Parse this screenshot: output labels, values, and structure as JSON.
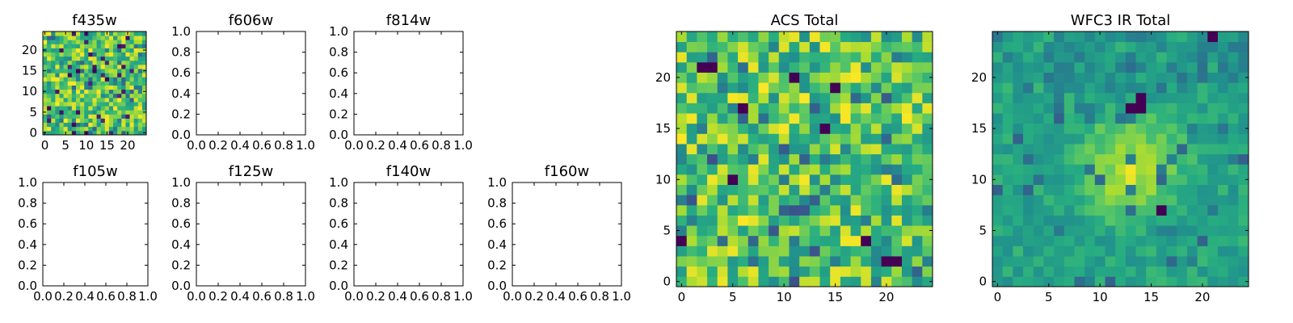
{
  "chart_data": [
    {
      "type": "heatmap",
      "title": "f435w",
      "xticks": [
        "0",
        "5",
        "10",
        "15",
        "20"
      ],
      "yticks": [
        "0",
        "5",
        "10",
        "15",
        "20"
      ],
      "xlim": [
        -0.5,
        24.5
      ],
      "ylim": [
        -0.5,
        24.5
      ],
      "grid_size": [
        25,
        25
      ],
      "colormap": "viridis",
      "seed": 11,
      "style": "noise"
    },
    {
      "type": "empty",
      "title": "f606w",
      "xticks": [
        "0.0",
        "0.2",
        "0.4",
        "0.6",
        "0.8",
        "1.0"
      ],
      "yticks": [
        "0.0",
        "0.2",
        "0.4",
        "0.6",
        "0.8",
        "1.0"
      ],
      "xlim": [
        0,
        1
      ],
      "ylim": [
        0,
        1
      ]
    },
    {
      "type": "empty",
      "title": "f814w",
      "xticks": [
        "0.0",
        "0.2",
        "0.4",
        "0.6",
        "0.8",
        "1.0"
      ],
      "yticks": [
        "0.0",
        "0.2",
        "0.4",
        "0.6",
        "0.8",
        "1.0"
      ],
      "xlim": [
        0,
        1
      ],
      "ylim": [
        0,
        1
      ]
    },
    {
      "type": "empty",
      "title": "f105w",
      "xticks": [
        "0.0",
        "0.2",
        "0.4",
        "0.6",
        "0.8",
        "1.0"
      ],
      "yticks": [
        "0.0",
        "0.2",
        "0.4",
        "0.6",
        "0.8",
        "1.0"
      ],
      "xlim": [
        0,
        1
      ],
      "ylim": [
        0,
        1
      ]
    },
    {
      "type": "empty",
      "title": "f125w",
      "xticks": [
        "0.0",
        "0.2",
        "0.4",
        "0.6",
        "0.8",
        "1.0"
      ],
      "yticks": [
        "0.0",
        "0.2",
        "0.4",
        "0.6",
        "0.8",
        "1.0"
      ],
      "xlim": [
        0,
        1
      ],
      "ylim": [
        0,
        1
      ]
    },
    {
      "type": "empty",
      "title": "f140w",
      "xticks": [
        "0.0",
        "0.2",
        "0.4",
        "0.6",
        "0.8",
        "1.0"
      ],
      "yticks": [
        "0.0",
        "0.2",
        "0.4",
        "0.6",
        "0.8",
        "1.0"
      ],
      "xlim": [
        0,
        1
      ],
      "ylim": [
        0,
        1
      ]
    },
    {
      "type": "empty",
      "title": "f160w",
      "xticks": [
        "0.0",
        "0.2",
        "0.4",
        "0.6",
        "0.8",
        "1.0"
      ],
      "yticks": [
        "0.0",
        "0.2",
        "0.4",
        "0.6",
        "0.8",
        "1.0"
      ],
      "xlim": [
        0,
        1
      ],
      "ylim": [
        0,
        1
      ]
    },
    {
      "type": "heatmap",
      "title": "ACS Total",
      "xticks": [
        "0",
        "5",
        "10",
        "15",
        "20"
      ],
      "yticks": [
        "0",
        "5",
        "10",
        "15",
        "20"
      ],
      "xlim": [
        -0.5,
        24.5
      ],
      "ylim": [
        -0.5,
        24.5
      ],
      "grid_size": [
        25,
        25
      ],
      "colormap": "viridis",
      "seed": 29,
      "style": "acs",
      "dark_cells": [
        [
          2,
          21
        ],
        [
          3,
          21
        ],
        [
          11,
          20
        ],
        [
          15,
          19
        ],
        [
          6,
          17
        ],
        [
          14,
          15
        ],
        [
          5,
          10
        ],
        [
          0,
          4
        ],
        [
          18,
          4
        ],
        [
          20,
          2
        ],
        [
          21,
          2
        ]
      ]
    },
    {
      "type": "heatmap",
      "title": "WFC3 IR Total",
      "xticks": [
        "0",
        "5",
        "10",
        "15",
        "20"
      ],
      "yticks": [
        "0",
        "5",
        "10",
        "15",
        "20"
      ],
      "xlim": [
        -0.5,
        24.5
      ],
      "ylim": [
        -0.5,
        24.5
      ],
      "grid_size": [
        25,
        25
      ],
      "colormap": "viridis",
      "seed": 47,
      "style": "wfc3",
      "dark_cells": [
        [
          21,
          24
        ],
        [
          14,
          18
        ],
        [
          13,
          17
        ],
        [
          14,
          17
        ],
        [
          16,
          7
        ]
      ]
    }
  ]
}
